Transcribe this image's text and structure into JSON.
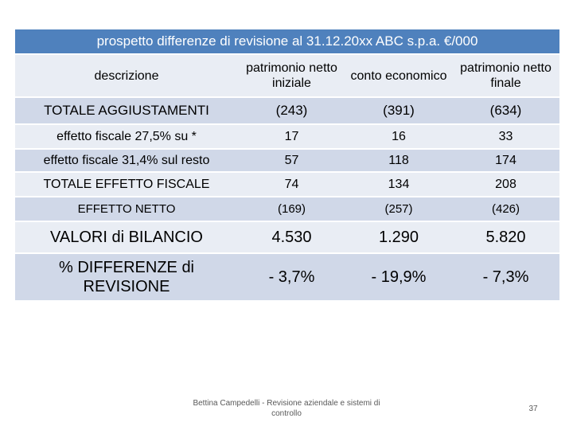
{
  "title": "prospetto differenze di revisione al 31.12.20xx ABC s.p.a. €/000",
  "header": {
    "label": "descrizione",
    "col_a": "patrimonio netto iniziale",
    "col_b": "conto economico",
    "col_c": "patrimonio netto finale"
  },
  "rows": [
    {
      "label": "TOTALE AGGIUSTAMENTI",
      "a": "(243)",
      "b": "(391)",
      "c": "(634)"
    },
    {
      "label": "effetto fiscale 27,5% su *",
      "a": "17",
      "b": "16",
      "c": "33"
    },
    {
      "label": "effetto fiscale 31,4% sul resto",
      "a": "57",
      "b": "118",
      "c": "174"
    },
    {
      "label": "TOTALE EFFETTO FISCALE",
      "a": "74",
      "b": "134",
      "c": "208"
    },
    {
      "label": "EFFETTO NETTO",
      "a": "(169)",
      "b": "(257)",
      "c": "(426)"
    },
    {
      "label": "VALORI di BILANCIO",
      "a": "4.530",
      "b": "1.290",
      "c": "5.820"
    },
    {
      "label": "% DIFFERENZE di REVISIONE",
      "a": "- 3,7%",
      "b": "- 19,9%",
      "c": "- 7,3%"
    }
  ],
  "footer": {
    "text": "Bettina Campedelli - Revisione aziendale e sistemi di controllo",
    "page": "37"
  },
  "colors": {
    "title_bg": "#4f81bd",
    "row_light": "#e9edf4",
    "row_dark": "#d0d8e8"
  }
}
